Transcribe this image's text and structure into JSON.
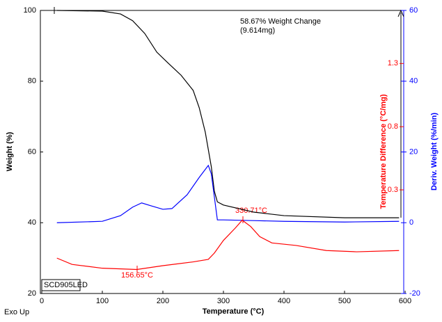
{
  "chart_data": {
    "type": "line",
    "x_label": "Temperature (°C)",
    "y_label": "Weight (%)",
    "y2_label": "Deriv. Weight (%/min)",
    "y3_label": "Temperature Difference (°C/mg)",
    "xlim": [
      0,
      600
    ],
    "xticks": [
      0,
      100,
      200,
      300,
      400,
      500,
      600
    ],
    "ylim": [
      20,
      100
    ],
    "yticks": [
      20,
      40,
      60,
      80,
      100
    ],
    "y2lim": [
      -20,
      60
    ],
    "y2ticks": [
      -20,
      0,
      20,
      40,
      60
    ],
    "y3lim": [
      -0.52,
      1.72
    ],
    "y3ticks": [
      0.3,
      0.8,
      1.3
    ],
    "series": [
      {
        "name": "Weight",
        "color": "#000000",
        "axis": "y",
        "x": [
          25,
          100,
          130,
          150,
          170,
          190,
          210,
          230,
          250,
          260,
          270,
          280,
          285,
          290,
          300,
          350,
          400,
          500,
          590
        ],
        "values": [
          100,
          99.8,
          99.0,
          97.1,
          93.5,
          88.2,
          84.9,
          81.7,
          77.4,
          72.5,
          65.6,
          55.8,
          48.9,
          45.9,
          45.0,
          43.0,
          42.0,
          41.4,
          41.4
        ]
      },
      {
        "name": "Deriv. Weight",
        "color": "#0000ff",
        "axis": "y2",
        "x": [
          25,
          100,
          130,
          150,
          165,
          180,
          200,
          215,
          240,
          260,
          275,
          280,
          290,
          300,
          350,
          400,
          500,
          590
        ],
        "values": [
          0,
          0.4,
          2,
          4.4,
          5.6,
          4.8,
          3.8,
          4,
          7.9,
          12.8,
          16.2,
          13.8,
          0.8,
          0.8,
          0.6,
          0.4,
          0.2,
          0.4
        ]
      },
      {
        "name": "Temperature Difference",
        "color": "#ff0000",
        "axis": "y3",
        "x": [
          25,
          50,
          100,
          157,
          200,
          250,
          275,
          285,
          300,
          320,
          331,
          345,
          360,
          380,
          420,
          470,
          520,
          590
        ],
        "values": [
          -0.24,
          -0.29,
          -0.32,
          -0.33,
          -0.3,
          -0.27,
          -0.25,
          -0.2,
          -0.1,
          0.0,
          0.06,
          0.01,
          -0.07,
          -0.12,
          -0.14,
          -0.18,
          -0.19,
          -0.18
        ]
      }
    ],
    "annotations": [
      "58.67% Weight Change",
      "(9.614mg)",
      "156.65°C",
      "330.71°C",
      "SCD905LED",
      "Exo Up"
    ]
  }
}
